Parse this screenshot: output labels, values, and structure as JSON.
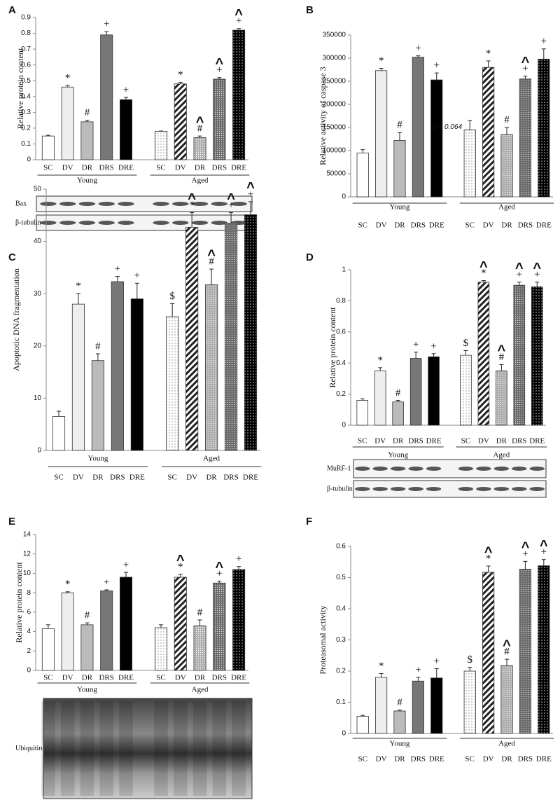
{
  "chart_data": [
    {
      "type": "bar",
      "panel": "A",
      "ylabel": "Relative protein content",
      "groups": [
        "Young",
        "Aged"
      ],
      "categories": [
        "SC",
        "DV",
        "DR",
        "DRS",
        "DRE",
        "SC",
        "DV",
        "DR",
        "DRS",
        "DRE"
      ],
      "values": [
        0.15,
        0.46,
        0.24,
        0.79,
        0.38,
        0.18,
        0.48,
        0.14,
        0.51,
        0.82
      ],
      "errors": [
        0.005,
        0.01,
        0.01,
        0.02,
        0.015,
        0.002,
        0.01,
        0.01,
        0.01,
        0.01
      ],
      "annotations": [
        null,
        [
          "*"
        ],
        [
          "#"
        ],
        [
          "+"
        ],
        [
          "+"
        ],
        null,
        [
          "*"
        ],
        [
          "^",
          "#"
        ],
        [
          "^",
          "+"
        ],
        [
          "^",
          "+"
        ]
      ],
      "colors": [
        "#ffffff",
        "#eeeeee",
        "#bbbbbb",
        "#777777",
        "#000000",
        "dots",
        "hatch",
        "greydots",
        "darkdots",
        "blackdots"
      ],
      "ylim": [
        0,
        0.9
      ],
      "yticks": [
        0,
        0.1,
        0.2,
        0.3,
        0.4,
        0.5,
        0.6,
        0.7,
        0.8,
        0.9
      ],
      "blots": [
        "Bax",
        "β-tubulin"
      ]
    },
    {
      "type": "bar",
      "panel": "B",
      "ylabel": "Relative activity of caspase 3",
      "groups": [
        "Young",
        "Aged"
      ],
      "categories": [
        "SC",
        "DV",
        "DR",
        "DRS",
        "DRE",
        "SC",
        "DV",
        "DR",
        "DRS",
        "DRE"
      ],
      "values": [
        95000,
        273000,
        122000,
        302000,
        253000,
        145000,
        280000,
        135000,
        255000,
        298000
      ],
      "errors": [
        7000,
        5000,
        17000,
        3000,
        15000,
        20000,
        14000,
        15000,
        6000,
        22000
      ],
      "annotations": [
        null,
        [
          "*"
        ],
        [
          "#"
        ],
        [
          "+"
        ],
        [
          "+"
        ],
        [
          "p = 0.064"
        ],
        [
          "*"
        ],
        [
          "#"
        ],
        [
          "^",
          "+"
        ],
        [
          "+"
        ]
      ],
      "colors": [
        "#ffffff",
        "#eeeeee",
        "#bbbbbb",
        "#777777",
        "#000000",
        "dots",
        "hatch",
        "greydots",
        "darkdots",
        "blackdots"
      ],
      "ylim": [
        0,
        350000
      ],
      "yticks": [
        0,
        50000,
        100000,
        150000,
        200000,
        250000,
        300000,
        350000
      ]
    },
    {
      "type": "bar",
      "panel": "C",
      "ylabel": "Apoptotic DNA fragmentation",
      "groups": [
        "Young",
        "Aged"
      ],
      "categories": [
        "SC",
        "DV",
        "DR",
        "DRS",
        "DRE",
        "SC",
        "DV",
        "DR",
        "DRS",
        "DRE"
      ],
      "values": [
        6.5,
        28,
        17.2,
        32.3,
        29,
        25.6,
        42.7,
        31.7,
        43.5,
        45.1
      ],
      "errors": [
        1,
        2,
        1.3,
        1,
        3,
        2.5,
        2.8,
        3,
        2,
        2.5
      ],
      "annotations": [
        null,
        [
          "*"
        ],
        [
          "#"
        ],
        [
          "+"
        ],
        [
          "+"
        ],
        [
          "$"
        ],
        [
          "^",
          "*"
        ],
        [
          "^",
          "#"
        ],
        [
          "^",
          "+"
        ],
        [
          "^",
          "+"
        ]
      ],
      "colors": [
        "#ffffff",
        "#eeeeee",
        "#bbbbbb",
        "#777777",
        "#000000",
        "dots",
        "hatch",
        "greydots",
        "darkdots",
        "blackdots"
      ],
      "ylim": [
        0,
        50
      ],
      "yticks": [
        0,
        10,
        20,
        30,
        40,
        50
      ]
    },
    {
      "type": "bar",
      "panel": "D",
      "ylabel": "Relative protein content",
      "groups": [
        "Young",
        "Aged"
      ],
      "categories": [
        "SC",
        "DV",
        "DR",
        "DRS",
        "DRE",
        "SC",
        "DV",
        "DR",
        "DRS",
        "DRE"
      ],
      "values": [
        0.16,
        0.35,
        0.15,
        0.43,
        0.44,
        0.45,
        0.92,
        0.35,
        0.9,
        0.89
      ],
      "errors": [
        0.01,
        0.02,
        0.01,
        0.04,
        0.02,
        0.03,
        0.01,
        0.04,
        0.02,
        0.03
      ],
      "annotations": [
        null,
        [
          "*"
        ],
        [
          "#"
        ],
        [
          "+"
        ],
        [
          "+"
        ],
        [
          "$"
        ],
        [
          "^",
          "*"
        ],
        [
          "^",
          "#"
        ],
        [
          "^",
          "+"
        ],
        [
          "^",
          "+"
        ]
      ],
      "colors": [
        "#ffffff",
        "#eeeeee",
        "#bbbbbb",
        "#777777",
        "#000000",
        "dots",
        "hatch",
        "greydots",
        "darkdots",
        "blackdots"
      ],
      "ylim": [
        0,
        1
      ],
      "yticks": [
        0,
        0.2,
        0.4,
        0.6,
        0.8,
        1
      ],
      "blots": [
        "MuRF-1",
        "β-tubulin"
      ]
    },
    {
      "type": "bar",
      "panel": "E",
      "ylabel": "Relative protein content",
      "groups": [
        "Young",
        "Aged"
      ],
      "categories": [
        "SC",
        "DV",
        "DR",
        "DRS",
        "DRE",
        "SC",
        "DV",
        "DR",
        "DRS",
        "DRE"
      ],
      "values": [
        4.3,
        8,
        4.7,
        8.2,
        9.6,
        4.4,
        9.6,
        4.6,
        9,
        10.4
      ],
      "errors": [
        0.4,
        0.1,
        0.2,
        0.1,
        0.5,
        0.3,
        0.3,
        0.6,
        0.2,
        0.3
      ],
      "annotations": [
        null,
        [
          "*"
        ],
        [
          "#"
        ],
        [
          "+"
        ],
        [
          "+"
        ],
        null,
        [
          "^",
          "*"
        ],
        [
          "#"
        ],
        [
          "^",
          "+"
        ],
        [
          "+"
        ]
      ],
      "colors": [
        "#ffffff",
        "#eeeeee",
        "#bbbbbb",
        "#777777",
        "#000000",
        "dots",
        "hatch",
        "greydots",
        "darkdots",
        "blackdots"
      ],
      "ylim": [
        0,
        14
      ],
      "yticks": [
        0,
        2,
        4,
        6,
        8,
        10,
        12,
        14
      ],
      "blots": [
        "Ubiquitin"
      ]
    },
    {
      "type": "bar",
      "panel": "F",
      "ylabel": "Proteasomal activity",
      "groups": [
        "Young",
        "Aged"
      ],
      "categories": [
        "SC",
        "DV",
        "DR",
        "DRS",
        "DRE",
        "SC",
        "DV",
        "DR",
        "DRS",
        "DRE"
      ],
      "values": [
        0.055,
        0.18,
        0.072,
        0.168,
        0.178,
        0.2,
        0.517,
        0.218,
        0.527,
        0.538
      ],
      "errors": [
        0.003,
        0.012,
        0.003,
        0.012,
        0.03,
        0.012,
        0.02,
        0.02,
        0.025,
        0.02
      ],
      "annotations": [
        null,
        [
          "*"
        ],
        [
          "#"
        ],
        [
          "+"
        ],
        [
          "+"
        ],
        [
          "$"
        ],
        [
          "^",
          "*"
        ],
        [
          "^",
          "#"
        ],
        [
          "^",
          "+"
        ],
        [
          "^",
          "+"
        ]
      ],
      "colors": [
        "#ffffff",
        "#eeeeee",
        "#bbbbbb",
        "#777777",
        "#000000",
        "dots",
        "hatch",
        "greydots",
        "darkdots",
        "blackdots"
      ],
      "ylim": [
        0,
        0.6
      ],
      "yticks": [
        0,
        0.1,
        0.2,
        0.3,
        0.4,
        0.5,
        0.6
      ]
    }
  ]
}
